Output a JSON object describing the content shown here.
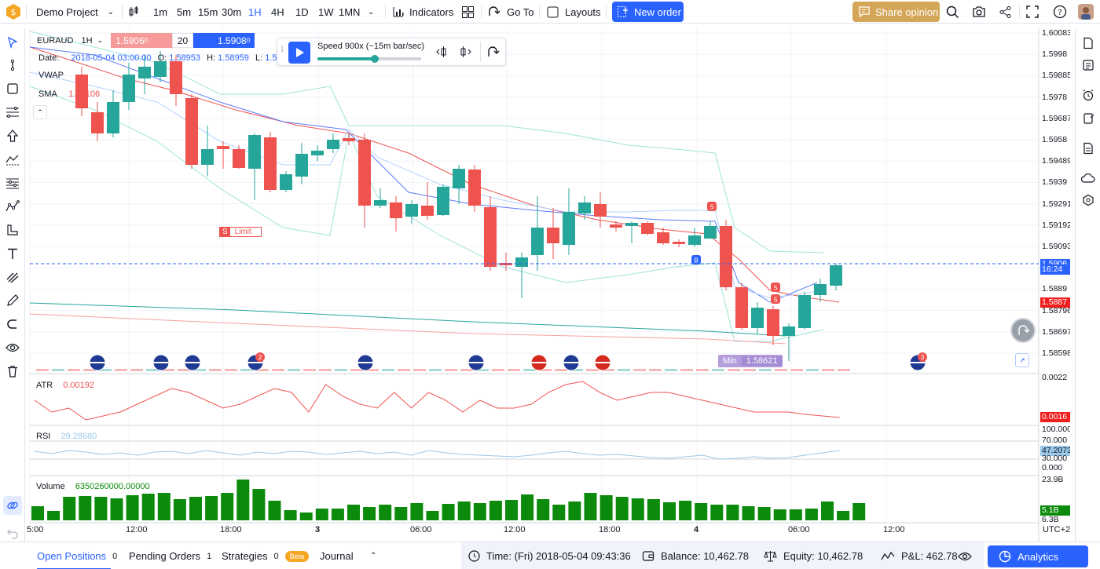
{
  "topbar": {
    "project": "Demo Project",
    "timeframes": [
      "1m",
      "5m",
      "15m",
      "30m",
      "1H",
      "4H",
      "1D",
      "1W",
      "1MN"
    ],
    "active_timeframe": "1H",
    "indicators": "Indicators",
    "goto": "Go To",
    "layouts": "Layouts",
    "new_order": "New order",
    "share_opinion": "Share opinion"
  },
  "symbol": {
    "name": "EURAUD",
    "interval": "1H",
    "bid": "1.5906",
    "bid_sup": "0",
    "qty": "20",
    "ask": "1.5908",
    "ask_sup": "0"
  },
  "legend": {
    "date_label": "Date:",
    "date": "2018-05-04 03:00:00",
    "o_label": "O:",
    "o": "1.58953",
    "h_label": "H:",
    "h": "1.58959",
    "l_label": "L:",
    "l": "1.58683",
    "vwap": "VWAP",
    "sma": "SMA",
    "sma_value": "1.59106"
  },
  "replay": {
    "speed": "Speed 900x (~15m bar/sec)",
    "progress": 0.55
  },
  "price_axis": [
    "1.60083",
    "1.5998",
    "1.59885",
    "1.5978",
    "1.59687",
    "1.5958",
    "1.59489",
    "1.5939",
    "1.59291",
    "1.59192",
    "1.59093",
    "1.58994",
    "1.5889",
    "1.58796",
    "1.58697",
    "1.58598"
  ],
  "current_price": "1.5906",
  "countdown": "16:24",
  "red_price": "1.5887",
  "min_label": "Min",
  "min_value": "1.58621",
  "limit_label": "Limit",
  "atr": {
    "label": "ATR",
    "value": "0.00192",
    "axis_top": "0.0022",
    "axis_val": "0.0016"
  },
  "rsi": {
    "label": "RSI",
    "value": "29.28680",
    "axis": [
      "100.000",
      "70.000",
      "47.2073",
      "30.000",
      "0.000"
    ]
  },
  "volume": {
    "label": "Volume",
    "value": "6350260000.00000",
    "axis_top": "23.9B",
    "axis_a": "5.1B",
    "axis_b": "6.3B"
  },
  "time_axis": [
    "5:00",
    "12:00",
    "18:00",
    "3",
    "06:00",
    "12:00",
    "18:00",
    "4",
    "06:00",
    "12:00"
  ],
  "timezone": "UTC+2",
  "bottombar": {
    "open_positions": "Open Positions",
    "open_positions_count": "0",
    "pending_orders": "Pending Orders",
    "pending_orders_count": "1",
    "strategies": "Strategies",
    "strategies_count": "0",
    "beta": "Beta",
    "journal": "Journal",
    "time": "Time: (Fri) 2018-05-04 09:43:36",
    "balance": "Balance: 10,462.78",
    "equity": "Equity: 10,462.78",
    "pnl": "P&L: 462.78",
    "analytics": "Analytics"
  },
  "colors": {
    "up": "#26a69a",
    "down": "#ef5350",
    "accent": "#2962ff",
    "volume": "#0b8a0b"
  },
  "event_badges": [
    "2",
    "3"
  ],
  "order_markers": [
    "S",
    "S",
    "S",
    "B",
    "B"
  ]
}
